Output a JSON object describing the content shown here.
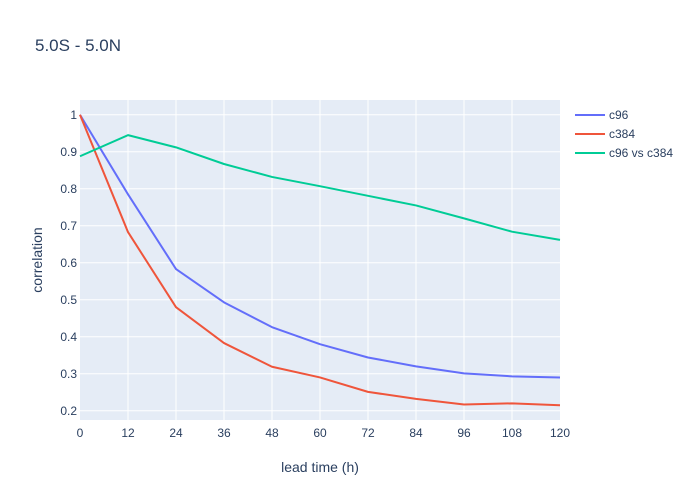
{
  "chart_data": {
    "type": "line",
    "title": "5.0S - 5.0N",
    "xlabel": "lead time (h)",
    "ylabel": "correlation",
    "x": [
      0,
      12,
      24,
      36,
      48,
      60,
      72,
      84,
      96,
      108,
      120
    ],
    "xlim": [
      0,
      120
    ],
    "ylim": [
      0.175,
      1.04
    ],
    "x_ticks": [
      "0",
      "12",
      "24",
      "36",
      "48",
      "60",
      "72",
      "84",
      "96",
      "108",
      "120"
    ],
    "y_ticks": [
      {
        "value": 0.2,
        "label": "0.2"
      },
      {
        "value": 0.3,
        "label": "0.3"
      },
      {
        "value": 0.4,
        "label": "0.4"
      },
      {
        "value": 0.5,
        "label": "0.5"
      },
      {
        "value": 0.6,
        "label": "0.6"
      },
      {
        "value": 0.7,
        "label": "0.7"
      },
      {
        "value": 0.8,
        "label": "0.8"
      },
      {
        "value": 0.9,
        "label": "0.9"
      },
      {
        "value": 1.0,
        "label": "1"
      }
    ],
    "grid": true,
    "legend_position": "top-right",
    "series": [
      {
        "name": "c96",
        "color": "#636efa",
        "values": [
          1.0,
          0.785,
          0.583,
          0.493,
          0.426,
          0.38,
          0.344,
          0.32,
          0.301,
          0.293,
          0.29
        ]
      },
      {
        "name": "c384",
        "color": "#ef553b",
        "values": [
          1.0,
          0.683,
          0.48,
          0.383,
          0.319,
          0.29,
          0.251,
          0.232,
          0.217,
          0.22,
          0.215
        ]
      },
      {
        "name": "c96 vs c384",
        "color": "#00cc96",
        "values": [
          0.888,
          0.945,
          0.912,
          0.867,
          0.832,
          0.807,
          0.781,
          0.755,
          0.72,
          0.684,
          0.662
        ]
      }
    ],
    "plot_bg": "#e5ecf6",
    "grid_color": "#ffffff"
  }
}
